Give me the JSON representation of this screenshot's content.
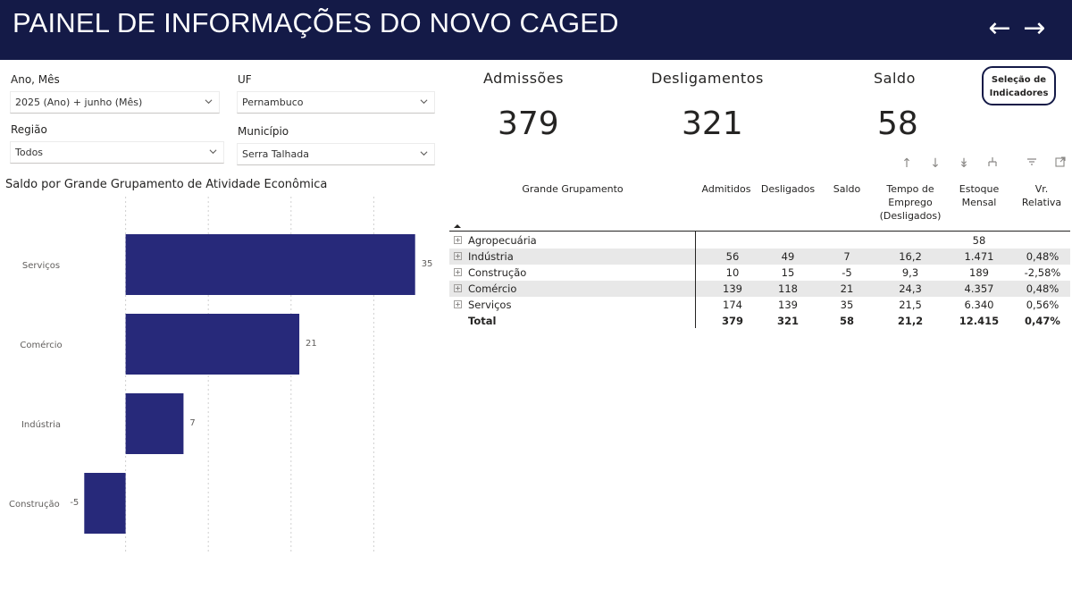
{
  "header": {
    "title": "PAINEL DE INFORMAÇÕES DO NOVO CAGED"
  },
  "filters": {
    "ano_mes": {
      "label": "Ano, Mês",
      "value": "2025 (Ano) + junho (Mês)"
    },
    "uf": {
      "label": "UF",
      "value": "Pernambuco"
    },
    "regiao": {
      "label": "Região",
      "value": "Todos"
    },
    "municipio": {
      "label": "Município",
      "value": "Serra Talhada"
    }
  },
  "kpis": {
    "admissoes": {
      "label": "Admissões",
      "value": "379"
    },
    "desligamentos": {
      "label": "Desligamentos",
      "value": "321"
    },
    "saldo": {
      "label": "Saldo",
      "value": "58"
    }
  },
  "selection_button": {
    "line1": "Seleção de",
    "line2": "Indicadores"
  },
  "chart_data": {
    "type": "bar",
    "orientation": "horizontal",
    "title": "Saldo por Grande Grupamento de Atividade Econômica",
    "categories": [
      "Serviços",
      "Comércio",
      "Indústria",
      "Construção"
    ],
    "values": [
      35,
      21,
      7,
      -5
    ],
    "data_labels": [
      "35",
      "21",
      "7",
      "-5"
    ],
    "xlim": [
      -10,
      40
    ],
    "grid": true,
    "color": "#27297a"
  },
  "table": {
    "headers": {
      "grupo": "Grande Grupamento",
      "admitidos": "Admitidos",
      "desligados": "Desligados",
      "saldo": "Saldo",
      "tempo1": "Tempo de",
      "tempo2": "Emprego",
      "tempo3": "(Desligados)",
      "estoque1": "Estoque",
      "estoque2": "Mensal",
      "vr1": "Vr.",
      "vr2": "Relativa"
    },
    "rows": [
      {
        "name": "Agropecuária",
        "admitidos": "",
        "desligados": "",
        "saldo": "",
        "tempo": "",
        "estoque": "58",
        "vr": ""
      },
      {
        "name": "Indústria",
        "admitidos": "56",
        "desligados": "49",
        "saldo": "7",
        "tempo": "16,2",
        "estoque": "1.471",
        "vr": "0,48%"
      },
      {
        "name": "Construção",
        "admitidos": "10",
        "desligados": "15",
        "saldo": "-5",
        "tempo": "9,3",
        "estoque": "189",
        "vr": "-2,58%"
      },
      {
        "name": "Comércio",
        "admitidos": "139",
        "desligados": "118",
        "saldo": "21",
        "tempo": "24,3",
        "estoque": "4.357",
        "vr": "0,48%"
      },
      {
        "name": "Serviços",
        "admitidos": "174",
        "desligados": "139",
        "saldo": "35",
        "tempo": "21,5",
        "estoque": "6.340",
        "vr": "0,56%"
      }
    ],
    "total": {
      "name": "Total",
      "admitidos": "379",
      "desligados": "321",
      "saldo": "58",
      "tempo": "21,2",
      "estoque": "12.415",
      "vr": "0,47%"
    }
  },
  "icons": {
    "nav_back": "arrow-left-icon",
    "nav_forward": "arrow-right-icon",
    "drill_up": "arrow-up-icon",
    "drill_down": "arrow-down-icon",
    "expand_all": "double-arrow-down-icon",
    "expand_next": "hierarchy-icon",
    "filter": "filter-icon",
    "focus": "focus-mode-icon"
  }
}
